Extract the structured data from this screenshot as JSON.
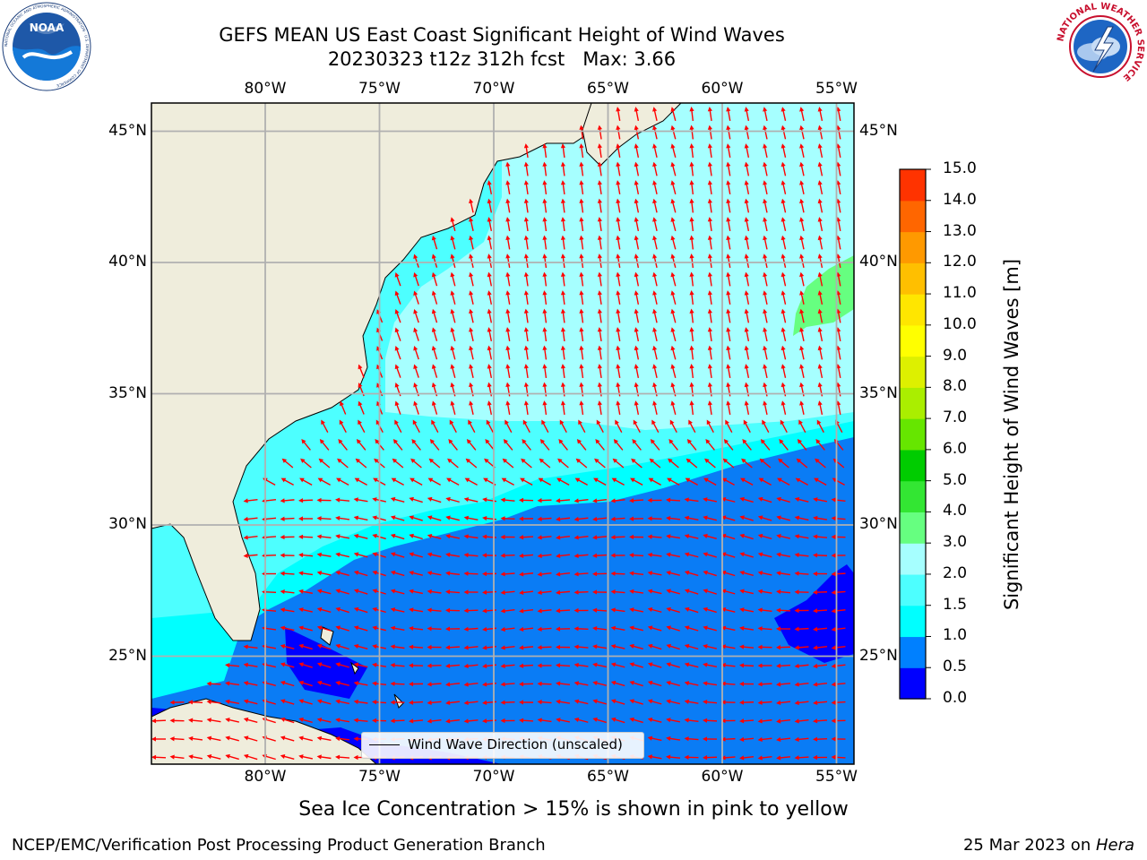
{
  "header": {
    "title_line1": "GEFS MEAN US East Coast Significant Height of Wind Waves",
    "title_line2": "20230323 t12z 312h fcst   Max: 3.66"
  },
  "logos": {
    "noaa_text": "NOAA",
    "noaa_ring": "NATIONAL OCEANIC AND ATMOSPHERIC ADMINISTRATION · U.S. DEPARTMENT OF COMMERCE",
    "nws_ring": "NATIONAL WEATHER SERVICE"
  },
  "map": {
    "lon_labels": [
      "80°W",
      "75°W",
      "70°W",
      "65°W",
      "60°W",
      "55°W"
    ],
    "lat_labels": [
      "45°N",
      "40°N",
      "35°N",
      "30°N",
      "25°N"
    ],
    "lon_values": [
      -80,
      -75,
      -70,
      -65,
      -60,
      -55
    ],
    "lat_values": [
      45,
      40,
      35,
      30,
      25
    ],
    "legend_label": "Wind Wave Direction (unscaled)",
    "arrow_color": "#ff0000",
    "land_color": "#efeddc",
    "grid_color": "#b0b0b0"
  },
  "colorbar": {
    "label": "Significant Height of Wind Waves [m]",
    "ticks": [
      "15.0",
      "14.0",
      "13.0",
      "12.0",
      "11.0",
      "10.0",
      "9.0",
      "8.0",
      "7.0",
      "6.0",
      "5.0",
      "4.0",
      "3.0",
      "2.0",
      "1.5",
      "1.0",
      "0.5",
      "0.0"
    ],
    "colors": [
      "#0000ff",
      "#0080ff",
      "#00ffff",
      "#4dffff",
      "#a6ffff",
      "#66ff80",
      "#33e633",
      "#00cc00",
      "#66e600",
      "#aaee00",
      "#ddf000",
      "#ffff00",
      "#ffe600",
      "#ffbf00",
      "#ff9900",
      "#ff6600",
      "#ff3300",
      "#ff0000"
    ]
  },
  "notes": {
    "sea_ice": "Sea Ice Concentration > 15% is shown in pink to yellow"
  },
  "footer": {
    "left": "NCEP/EMC/Verification Post Processing Product Generation Branch",
    "date": "25 Mar 2023 on ",
    "machine": "Hera"
  }
}
